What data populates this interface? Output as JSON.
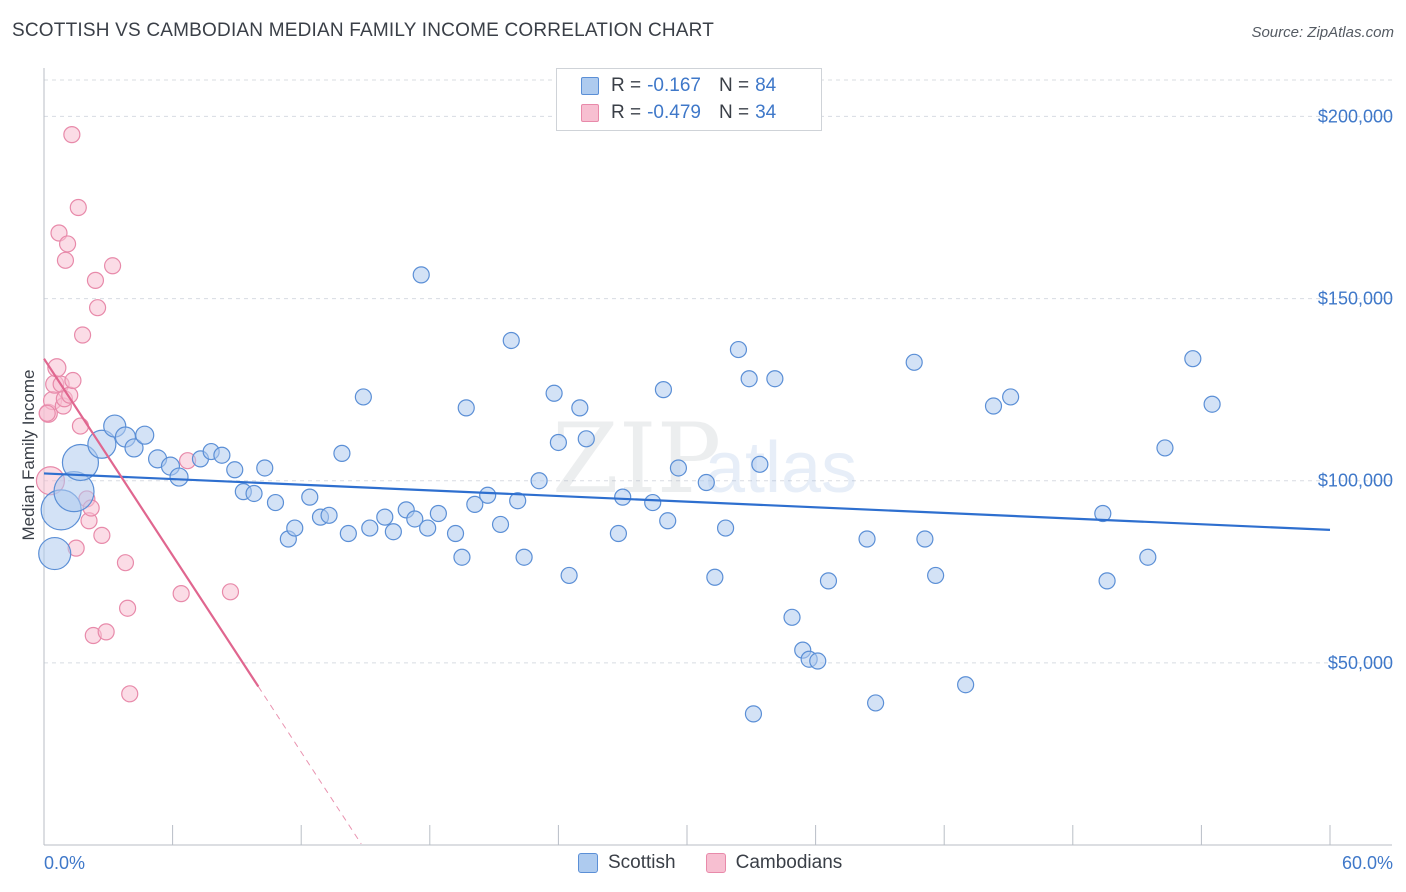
{
  "header": {
    "title": "SCOTTISH VS CAMBODIAN MEDIAN FAMILY INCOME CORRELATION CHART",
    "source": "Source: ZipAtlas.com"
  },
  "legend": {
    "r_label": "R =",
    "n_label": "N =",
    "series": [
      {
        "name": "Scottish",
        "r": "-0.167",
        "n": "84"
      },
      {
        "name": "Cambodians",
        "r": "-0.479",
        "n": "34"
      }
    ]
  },
  "colors": {
    "scottish_fill": "#aecbef",
    "scottish_stroke": "#5b8fd6",
    "scottish_line": "#2e6fcf",
    "cambodian_fill": "#f7bfd1",
    "cambodian_stroke": "#e88aaa",
    "cambodian_line": "#e0668f",
    "tick_text": "#3f78c9",
    "grid": "#d8dce2"
  },
  "watermark": {
    "zip": "ZIP",
    "atlas": "atlas"
  },
  "chart_data": {
    "type": "scatter",
    "title": "SCOTTISH VS CAMBODIAN MEDIAN FAMILY INCOME CORRELATION CHART",
    "xlabel": "",
    "ylabel": "Median Family Income",
    "xlim": [
      0,
      60
    ],
    "ylim": [
      0,
      210000
    ],
    "x_tick_labels": [
      "0.0%",
      "60.0%"
    ],
    "y_ticks": [
      {
        "value": 50000,
        "label": "$50,000"
      },
      {
        "value": 100000,
        "label": "$100,000"
      },
      {
        "value": 150000,
        "label": "$150,000"
      },
      {
        "value": 200000,
        "label": "$200,000"
      }
    ],
    "series": [
      {
        "name": "Scottish",
        "trend": {
          "x0": 0,
          "y0": 102000,
          "x1": 60,
          "y1": 86500
        },
        "points": [
          [
            0.5,
            80000,
            16
          ],
          [
            0.8,
            92000,
            20
          ],
          [
            1.4,
            97000,
            20
          ],
          [
            1.7,
            105000,
            18
          ],
          [
            2.7,
            110000,
            14
          ],
          [
            3.3,
            115000,
            11
          ],
          [
            3.8,
            112000,
            10
          ],
          [
            4.2,
            109000,
            9
          ],
          [
            4.7,
            112500,
            9
          ],
          [
            5.3,
            106000,
            9
          ],
          [
            5.9,
            104000,
            9
          ],
          [
            6.3,
            101000,
            9
          ],
          [
            7.3,
            106000,
            8
          ],
          [
            7.8,
            108000,
            8
          ],
          [
            8.3,
            107000,
            8
          ],
          [
            8.9,
            103000,
            8
          ],
          [
            9.3,
            97000,
            8
          ],
          [
            9.8,
            96500,
            8
          ],
          [
            10.3,
            103500,
            8
          ],
          [
            10.8,
            94000,
            8
          ],
          [
            11.4,
            84000,
            8
          ],
          [
            11.7,
            87000,
            8
          ],
          [
            12.4,
            95500,
            8
          ],
          [
            12.9,
            90000,
            8
          ],
          [
            13.3,
            90500,
            8
          ],
          [
            13.9,
            107500,
            8
          ],
          [
            14.2,
            85500,
            8
          ],
          [
            14.9,
            123000,
            8
          ],
          [
            15.2,
            87000,
            8
          ],
          [
            15.9,
            90000,
            8
          ],
          [
            16.3,
            86000,
            8
          ],
          [
            16.9,
            92000,
            8
          ],
          [
            17.3,
            89500,
            8
          ],
          [
            17.9,
            87000,
            8
          ],
          [
            18.4,
            91000,
            8
          ],
          [
            19.2,
            85500,
            8
          ],
          [
            19.5,
            79000,
            8
          ],
          [
            20.1,
            93500,
            8
          ],
          [
            20.7,
            96000,
            8
          ],
          [
            21.3,
            88000,
            8
          ],
          [
            22.1,
            94500,
            8
          ],
          [
            22.4,
            79000,
            8
          ],
          [
            23.1,
            100000,
            8
          ],
          [
            23.8,
            124000,
            8
          ],
          [
            24.5,
            74000,
            8
          ],
          [
            25.0,
            120000,
            8
          ],
          [
            25.3,
            111500,
            8
          ],
          [
            26.8,
            85500,
            8
          ],
          [
            27.0,
            95500,
            8
          ],
          [
            28.4,
            94000,
            8
          ],
          [
            28.9,
            125000,
            8
          ],
          [
            29.1,
            89000,
            8
          ],
          [
            29.6,
            103500,
            8
          ],
          [
            30.9,
            99500,
            8
          ],
          [
            31.3,
            73500,
            8
          ],
          [
            31.8,
            87000,
            8
          ],
          [
            32.4,
            136000,
            8
          ],
          [
            32.9,
            128000,
            8
          ],
          [
            33.1,
            36000,
            8
          ],
          [
            33.4,
            104500,
            8
          ],
          [
            34.1,
            128000,
            8
          ],
          [
            34.9,
            62500,
            8
          ],
          [
            35.4,
            53500,
            8
          ],
          [
            35.7,
            51000,
            8
          ],
          [
            36.1,
            50500,
            8
          ],
          [
            36.6,
            72500,
            8
          ],
          [
            38.4,
            84000,
            8
          ],
          [
            38.8,
            39000,
            8
          ],
          [
            40.6,
            132500,
            8
          ],
          [
            41.1,
            84000,
            8
          ],
          [
            41.6,
            74000,
            8
          ],
          [
            43.0,
            44000,
            8
          ],
          [
            44.3,
            120500,
            8
          ],
          [
            45.1,
            123000,
            8
          ],
          [
            49.4,
            91000,
            8
          ],
          [
            49.6,
            72500,
            8
          ],
          [
            51.5,
            79000,
            8
          ],
          [
            52.3,
            109000,
            8
          ],
          [
            53.6,
            133500,
            8
          ],
          [
            54.5,
            121000,
            8
          ],
          [
            17.6,
            156500,
            8
          ],
          [
            21.8,
            138500,
            8
          ],
          [
            19.7,
            120000,
            8
          ],
          [
            24.0,
            110500,
            8
          ]
        ]
      },
      {
        "name": "Cambodians",
        "trend": {
          "x0": 0,
          "y0": 133500,
          "x1": 10,
          "y1": 43500,
          "dashed_x1": 14.8
        },
        "points": [
          [
            0.2,
            118500,
            9
          ],
          [
            0.3,
            100000,
            14
          ],
          [
            0.4,
            122000,
            9
          ],
          [
            0.5,
            126500,
            9
          ],
          [
            0.6,
            131000,
            9
          ],
          [
            0.7,
            168000,
            8
          ],
          [
            0.8,
            126500,
            8
          ],
          [
            0.9,
            120500,
            8
          ],
          [
            0.95,
            122500,
            8
          ],
          [
            1.0,
            160500,
            8
          ],
          [
            1.1,
            165000,
            8
          ],
          [
            1.2,
            123500,
            8
          ],
          [
            1.3,
            195000,
            8
          ],
          [
            1.35,
            127500,
            8
          ],
          [
            1.5,
            81500,
            8
          ],
          [
            1.6,
            175000,
            8
          ],
          [
            1.7,
            115000,
            8
          ],
          [
            1.8,
            140000,
            8
          ],
          [
            2.0,
            95000,
            8
          ],
          [
            2.1,
            89000,
            8
          ],
          [
            2.2,
            92500,
            8
          ],
          [
            2.3,
            57500,
            8
          ],
          [
            2.4,
            155000,
            8
          ],
          [
            2.5,
            147500,
            8
          ],
          [
            2.7,
            85000,
            8
          ],
          [
            2.9,
            58500,
            8
          ],
          [
            3.2,
            159000,
            8
          ],
          [
            3.8,
            77500,
            8
          ],
          [
            3.9,
            65000,
            8
          ],
          [
            4.0,
            41500,
            8
          ],
          [
            6.4,
            69000,
            8
          ],
          [
            6.7,
            105500,
            8
          ],
          [
            8.7,
            69500,
            8
          ],
          [
            0.15,
            118500,
            8
          ]
        ]
      }
    ]
  }
}
